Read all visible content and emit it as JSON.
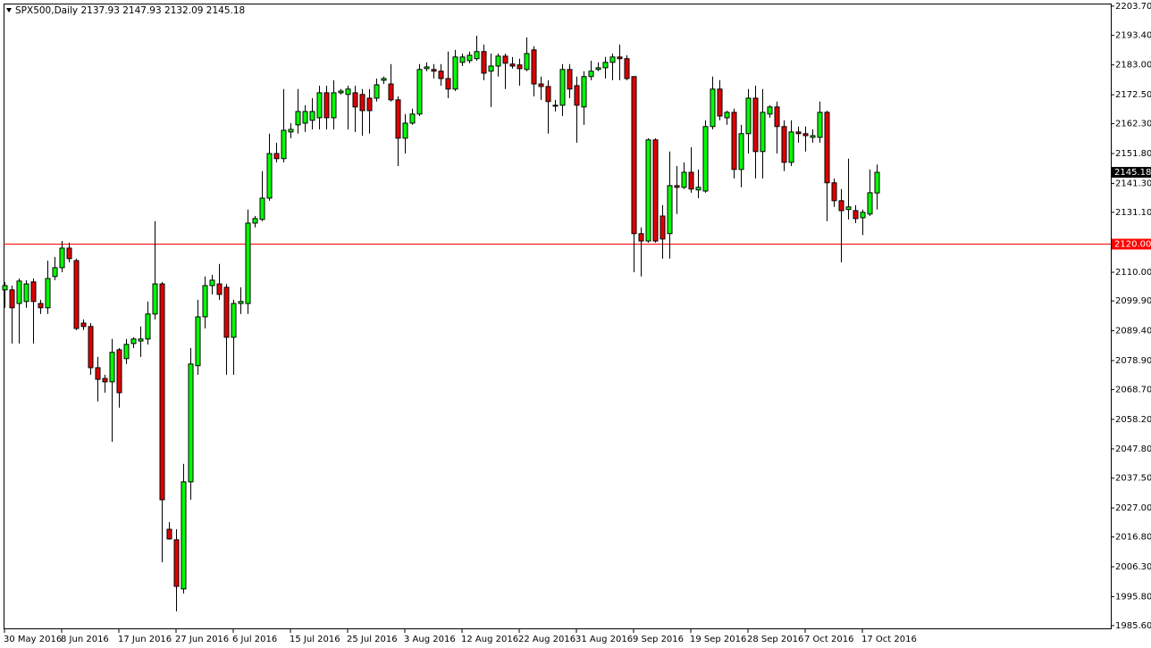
{
  "chart_data": {
    "type": "candlestick",
    "title": "SPX500,Daily",
    "categories": [
      "30 May 2016",
      null,
      null,
      null,
      null,
      null,
      null,
      null,
      "8 Jun 2016",
      null,
      null,
      null,
      null,
      null,
      null,
      null,
      "17 Jun 2016",
      null,
      null,
      null,
      null,
      null,
      null,
      null,
      "27 Jun 2016",
      null,
      null,
      null,
      null,
      null,
      null,
      null,
      "6 Jul 2016",
      null,
      null,
      null,
      null,
      null,
      null,
      null,
      "15 Jul 2016",
      null,
      null,
      null,
      null,
      null,
      null,
      null,
      "25 Jul 2016",
      null,
      null,
      null,
      null,
      null,
      null,
      null,
      "3 Aug 2016",
      null,
      null,
      null,
      null,
      null,
      null,
      null,
      "12 Aug 2016",
      null,
      null,
      null,
      null,
      null,
      null,
      null,
      "22 Aug 2016",
      null,
      null,
      null,
      null,
      null,
      null,
      null,
      "31 Aug 2016",
      null,
      null,
      null,
      null,
      null,
      null,
      null,
      "9 Sep 2016",
      null,
      null,
      null,
      null,
      null,
      null,
      null,
      "19 Sep 2016",
      null,
      null,
      null,
      null,
      null,
      null,
      null,
      "28 Sep 2016",
      null,
      null,
      null,
      null,
      null,
      null,
      null,
      "7 Oct 2016",
      null,
      null,
      null,
      null,
      null,
      null,
      null,
      "17 Oct 2016",
      null,
      null
    ],
    "open": [
      2103.8,
      2103.8,
      2099.0,
      2099.7,
      2106.6,
      2099.0,
      2097.5,
      2108.5,
      2111.6,
      2118.5,
      2114.1,
      2092.1,
      2090.9,
      2076.4,
      2072.6,
      2071.4,
      2082.7,
      2079.6,
      2084.9,
      2085.8,
      2086.5,
      2095.3,
      2105.9,
      2019.5,
      2015.8,
      1998.5,
      2036.2,
      2077.1,
      2094.3,
      2105.3,
      2105.9,
      2104.7,
      2087.1,
      2099.0,
      2099.0,
      2127.3,
      2128.6,
      2136.1,
      2151.8,
      2150.0,
      2159.4,
      2161.9,
      2162.5,
      2163.5,
      2164.4,
      2173.2,
      2164.4,
      2173.2,
      2172.6,
      2173.2,
      2172.6,
      2171.3,
      2171.3,
      2177.6,
      2176.3,
      2170.7,
      2157.2,
      2162.5,
      2165.7,
      2181.7,
      2181.4,
      2180.8,
      2178.2,
      2174.5,
      2183.9,
      2184.5,
      2185.2,
      2187.7,
      2180.8,
      2182.6,
      2186.1,
      2183.3,
      2183.0,
      2181.4,
      2188.3,
      2176.3,
      2175.4,
      2168.8,
      2168.8,
      2181.4,
      2175.7,
      2168.2,
      2178.9,
      2181.4,
      2182.0,
      2183.9,
      2185.8,
      2185.2,
      2178.9,
      2123.6,
      2121.0,
      2156.6,
      2129.8,
      2123.6,
      2140.5,
      2139.9,
      2145.2,
      2139.0,
      2138.6,
      2161.3,
      2174.5,
      2164.4,
      2166.3,
      2146.2,
      2158.8,
      2171.3,
      2152.5,
      2165.7,
      2168.2,
      2161.3,
      2148.7,
      2159.4,
      2158.8,
      2157.5,
      2157.5,
      2166.3,
      2141.5,
      2135.2,
      2132.1,
      2131.7,
      2129.2,
      2130.5,
      2137.93
    ],
    "high": [
      2106.6,
      2105.3,
      2107.8,
      2107.2,
      2107.8,
      2100.3,
      2114.1,
      2115.4,
      2121.0,
      2120.4,
      2114.8,
      2093.4,
      2092.1,
      2080.2,
      2073.9,
      2086.5,
      2083.3,
      2086.5,
      2087.1,
      2090.9,
      2099.7,
      2128.0,
      2106.6,
      2022.0,
      2019.5,
      2042.5,
      2083.3,
      2100.3,
      2108.5,
      2109.1,
      2112.9,
      2105.9,
      2100.3,
      2104.7,
      2132.1,
      2129.8,
      2145.6,
      2158.8,
      2155.6,
      2174.5,
      2162.5,
      2174.5,
      2168.8,
      2171.3,
      2175.7,
      2175.7,
      2177.6,
      2174.5,
      2175.7,
      2175.7,
      2174.5,
      2174.5,
      2178.2,
      2178.9,
      2183.3,
      2171.9,
      2165.7,
      2167.6,
      2183.3,
      2183.9,
      2183.3,
      2183.3,
      2187.7,
      2188.3,
      2187.0,
      2187.7,
      2193.3,
      2190.2,
      2187.0,
      2187.0,
      2187.0,
      2185.8,
      2185.2,
      2192.7,
      2189.6,
      2178.9,
      2177.6,
      2170.7,
      2183.3,
      2183.3,
      2178.9,
      2180.8,
      2184.5,
      2183.9,
      2185.8,
      2187.0,
      2190.2,
      2186.4,
      2178.9,
      2125.8,
      2157.2,
      2157.2,
      2133.6,
      2152.5,
      2147.4,
      2148.7,
      2154.0,
      2146.2,
      2163.5,
      2178.9,
      2177.6,
      2166.9,
      2167.6,
      2161.9,
      2174.5,
      2175.7,
      2174.5,
      2168.8,
      2170.1,
      2163.5,
      2163.5,
      2161.3,
      2161.3,
      2160.3,
      2170.1,
      2166.9,
      2143.0,
      2139.3,
      2150.0,
      2133.6,
      2132.1,
      2146.2,
      2147.93
    ],
    "low": [
      2097.5,
      2084.9,
      2084.9,
      2097.5,
      2084.9,
      2095.3,
      2095.3,
      2107.2,
      2110.0,
      2113.5,
      2089.6,
      2089.6,
      2073.9,
      2064.5,
      2067.6,
      2050.3,
      2062.3,
      2077.7,
      2083.3,
      2080.2,
      2084.6,
      2093.4,
      2007.9,
      2015.8,
      1990.6,
      1996.9,
      2029.9,
      2073.9,
      2090.2,
      2102.2,
      2100.3,
      2073.9,
      2073.9,
      2095.3,
      2095.3,
      2125.8,
      2128.0,
      2135.2,
      2148.7,
      2148.7,
      2157.2,
      2158.8,
      2159.4,
      2160.3,
      2160.3,
      2160.3,
      2160.3,
      2172.6,
      2160.3,
      2159.4,
      2158.1,
      2158.8,
      2170.1,
      2176.3,
      2170.1,
      2147.4,
      2151.8,
      2161.9,
      2165.0,
      2180.8,
      2178.2,
      2175.7,
      2171.3,
      2173.8,
      2182.6,
      2183.6,
      2184.5,
      2177.6,
      2168.2,
      2178.9,
      2174.5,
      2181.7,
      2175.7,
      2180.8,
      2171.9,
      2170.7,
      2158.8,
      2166.6,
      2165.0,
      2171.3,
      2155.6,
      2161.9,
      2177.6,
      2180.8,
      2178.2,
      2177.6,
      2177.6,
      2177.6,
      2110.0,
      2108.5,
      2120.4,
      2120.4,
      2114.8,
      2114.8,
      2130.5,
      2139.3,
      2138.0,
      2136.1,
      2138.0,
      2160.3,
      2163.5,
      2161.9,
      2143.0,
      2139.9,
      2151.8,
      2143.0,
      2143.0,
      2164.4,
      2151.8,
      2145.6,
      2147.4,
      2155.6,
      2152.5,
      2155.6,
      2155.6,
      2128.0,
      2133.0,
      2113.5,
      2128.6,
      2127.3,
      2123.1,
      2129.8,
      2132.09
    ],
    "close": [
      2105.3,
      2097.5,
      2106.9,
      2105.9,
      2099.7,
      2097.5,
      2107.8,
      2111.6,
      2118.5,
      2114.8,
      2090.2,
      2090.9,
      2076.4,
      2072.3,
      2071.4,
      2081.8,
      2067.6,
      2084.6,
      2086.5,
      2086.5,
      2095.3,
      2105.9,
      2029.9,
      2016.1,
      1999.4,
      2036.2,
      2077.7,
      2094.3,
      2105.3,
      2107.2,
      2102.2,
      2087.1,
      2099.0,
      2099.7,
      2127.3,
      2128.9,
      2136.1,
      2151.8,
      2150.0,
      2160.0,
      2160.3,
      2166.6,
      2166.6,
      2166.6,
      2173.2,
      2164.4,
      2173.2,
      2173.8,
      2174.5,
      2168.2,
      2166.9,
      2166.9,
      2176.0,
      2178.2,
      2170.7,
      2157.2,
      2162.5,
      2165.7,
      2181.4,
      2182.3,
      2180.8,
      2178.2,
      2174.5,
      2185.8,
      2185.8,
      2186.4,
      2187.7,
      2180.1,
      2182.6,
      2186.1,
      2183.6,
      2182.6,
      2181.7,
      2187.0,
      2176.3,
      2175.4,
      2170.1,
      2168.5,
      2181.4,
      2174.5,
      2168.8,
      2178.9,
      2180.8,
      2182.0,
      2183.9,
      2185.8,
      2185.2,
      2178.2,
      2123.6,
      2121.0,
      2156.6,
      2121.0,
      2121.7,
      2140.5,
      2139.9,
      2145.2,
      2139.3,
      2139.9,
      2161.3,
      2174.5,
      2165.0,
      2166.3,
      2146.2,
      2158.8,
      2171.3,
      2152.5,
      2166.3,
      2168.2,
      2161.3,
      2148.7,
      2159.4,
      2158.8,
      2158.1,
      2158.1,
      2166.3,
      2141.5,
      2135.2,
      2131.7,
      2133.0,
      2128.9,
      2131.1,
      2138.0,
      2145.18
    ],
    "up_color": "#00ff00",
    "down_color": "#e00000",
    "ylim": [
      1984.3,
      2204.6
    ],
    "yticks": [
      {
        "value": 2203.7,
        "label": "2203.70"
      },
      {
        "value": 2193.4,
        "label": "2193.40"
      },
      {
        "value": 2183.0,
        "label": "2183.00"
      },
      {
        "value": 2172.5,
        "label": "2172.50"
      },
      {
        "value": 2162.3,
        "label": "2162.30"
      },
      {
        "value": 2151.8,
        "label": "2151.80"
      },
      {
        "value": 2141.3,
        "label": "2141.30"
      },
      {
        "value": 2131.1,
        "label": "2131.10"
      },
      {
        "value": 2110.0,
        "label": "2110.00"
      },
      {
        "value": 2099.9,
        "label": "2099.90"
      },
      {
        "value": 2089.4,
        "label": "2089.40"
      },
      {
        "value": 2078.9,
        "label": "2078.90"
      },
      {
        "value": 2068.7,
        "label": "2068.70"
      },
      {
        "value": 2058.2,
        "label": "2058.20"
      },
      {
        "value": 2047.8,
        "label": "2047.80"
      },
      {
        "value": 2037.5,
        "label": "2037.50"
      },
      {
        "value": 2027.0,
        "label": "2027.00"
      },
      {
        "value": 2016.8,
        "label": "2016.80"
      },
      {
        "value": 2006.3,
        "label": "2006.30"
      },
      {
        "value": 1995.8,
        "label": "1995.80"
      },
      {
        "value": 1985.6,
        "label": "1985.60"
      }
    ],
    "hline": {
      "value": 2120,
      "label": "2120.00",
      "color": "#ff0000"
    }
  }
}
